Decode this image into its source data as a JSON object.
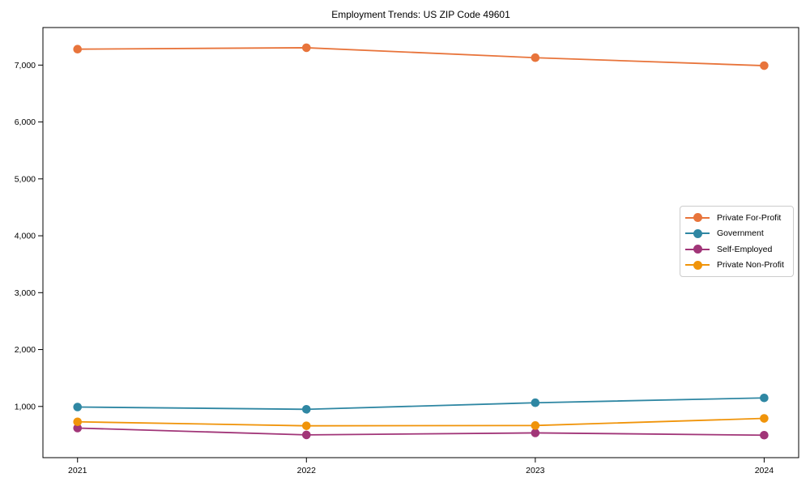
{
  "chart_data": {
    "type": "line",
    "title": "Employment Trends: US ZIP Code 49601",
    "categories": [
      "2021",
      "2022",
      "2023",
      "2024"
    ],
    "series": [
      {
        "name": "Private For-Profit",
        "color": "#e8743b",
        "values": [
          7280,
          7305,
          7130,
          6990
        ]
      },
      {
        "name": "Government",
        "color": "#2f87a3",
        "values": [
          990,
          950,
          1065,
          1150
        ]
      },
      {
        "name": "Self-Employed",
        "color": "#a13578",
        "values": [
          620,
          500,
          535,
          495
        ]
      },
      {
        "name": "Private Non-Profit",
        "color": "#f0940a",
        "values": [
          730,
          660,
          665,
          790
        ]
      }
    ],
    "yticks": [
      1000,
      2000,
      3000,
      4000,
      5000,
      6000,
      7000
    ],
    "ytick_labels": [
      "1,000",
      "2,000",
      "3,000",
      "4,000",
      "5,000",
      "6,000",
      "7,000"
    ],
    "ylim": [
      100,
      7660
    ],
    "xlabel": "",
    "ylabel": "",
    "grid": false,
    "legend_position": "center-right",
    "marker": "circle",
    "axis_color": "#000000"
  }
}
